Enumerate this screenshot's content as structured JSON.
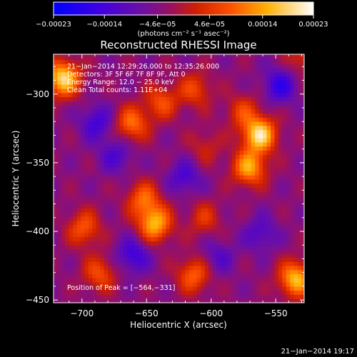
{
  "chart_data": {
    "type": "heatmap",
    "title": "Reconstructed RHESSI Image",
    "xlabel": "Heliocentric X (arcsec)",
    "ylabel": "Heliocentric Y (arcsec)",
    "xlim": [
      -722,
      -528
    ],
    "ylim": [
      -452,
      -271
    ],
    "xticks": [
      -700,
      -650,
      -600,
      -550
    ],
    "yticks": [
      -300,
      -350,
      -400,
      -450
    ],
    "xtick_labels": [
      "−700",
      "−650",
      "−600",
      "−550"
    ],
    "ytick_labels": [
      "−300",
      "−350",
      "−400",
      "−450"
    ],
    "colorbar": {
      "range": [
        -0.00023,
        0.00023
      ],
      "tick_values": [
        -0.00023,
        -0.00014,
        -4.6e-05,
        4.6e-05,
        0.00014,
        0.00023
      ],
      "tick_labels": [
        "−0.00023",
        "−0.00014",
        "−4.6e−05",
        "4.6e−05",
        "0.00014",
        "0.00023"
      ],
      "unit_label": "(photons cm⁻² s⁻¹ asec⁻²)"
    },
    "info_lines": [
      "21−Jan−2014 12:29:26.000 to 12:35:26.000",
      "Detectors: 3F 5F 6F 7F 8F 9F, Att 0",
      "Energy Range: 12.0 − 25.0 keV",
      "Clean     Total counts: 1.11E+04"
    ],
    "peak_text": "Position of Peak = [−564,−331]",
    "timestamp": "21−Jan−2014 19:17",
    "bright_regions": [
      {
        "x": -716,
        "y": -290,
        "intensity": 0.00023
      },
      {
        "x": -663,
        "y": -323,
        "intensity": 0.00014
      },
      {
        "x": -640,
        "y": -307,
        "intensity": 0.00011
      },
      {
        "x": -614,
        "y": -298,
        "intensity": 0.0001
      },
      {
        "x": -577,
        "y": -314,
        "intensity": 9e-05
      },
      {
        "x": -564,
        "y": -331,
        "intensity": 0.00023
      },
      {
        "x": -572,
        "y": -355,
        "intensity": 0.00018
      },
      {
        "x": -654,
        "y": -378,
        "intensity": 0.00013
      },
      {
        "x": -645,
        "y": -396,
        "intensity": 0.00019
      },
      {
        "x": -607,
        "y": -392,
        "intensity": 8e-05
      },
      {
        "x": -700,
        "y": -399,
        "intensity": 0.00012
      },
      {
        "x": -688,
        "y": -432,
        "intensity": 0.00011
      },
      {
        "x": -615,
        "y": -433,
        "intensity": 0.00013
      },
      {
        "x": -536,
        "y": -436,
        "intensity": 0.0002
      },
      {
        "x": -606,
        "y": -340,
        "intensity": 6e-05
      },
      {
        "x": -531,
        "y": -275,
        "intensity": 8e-05
      }
    ],
    "dim_regions": [
      {
        "x": -548,
        "y": -295,
        "intensity": -0.00012
      },
      {
        "x": -690,
        "y": -322,
        "intensity": -0.0001
      },
      {
        "x": -675,
        "y": -346,
        "intensity": -8e-05
      },
      {
        "x": -622,
        "y": -362,
        "intensity": -9e-05
      },
      {
        "x": -662,
        "y": -419,
        "intensity": -0.00011
      },
      {
        "x": -563,
        "y": -403,
        "intensity": -8e-05
      },
      {
        "x": -596,
        "y": -420,
        "intensity": -7e-05
      }
    ]
  }
}
